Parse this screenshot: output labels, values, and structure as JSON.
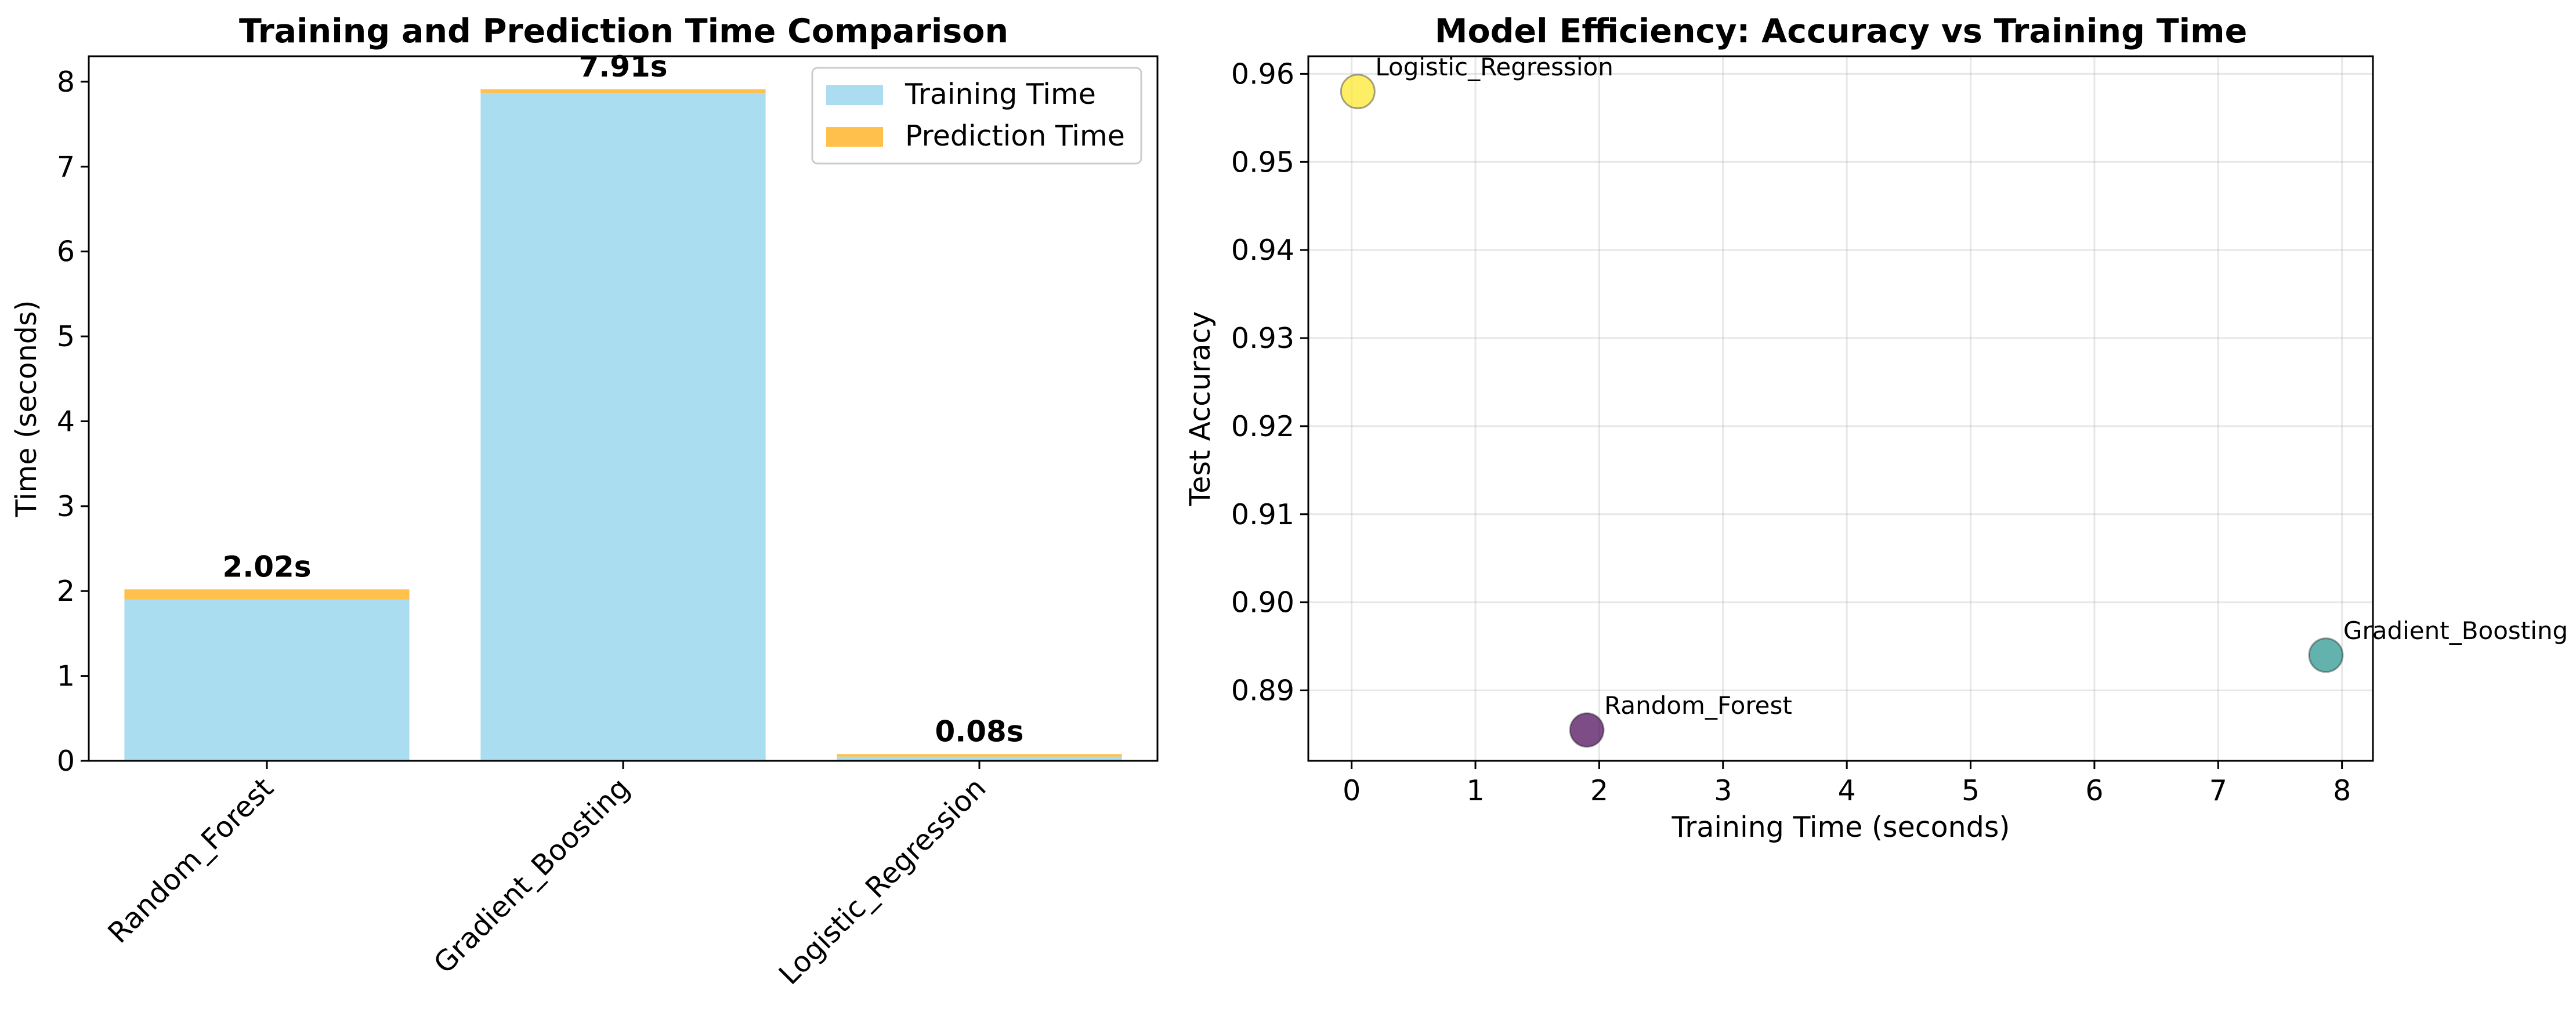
{
  "chart_data": [
    {
      "type": "bar",
      "title": "Training and Prediction Time Comparison",
      "xlabel": "",
      "ylabel": "Time (seconds)",
      "ylim": [
        0,
        8.3
      ],
      "yticks": [
        "0",
        "1",
        "2",
        "3",
        "4",
        "5",
        "6",
        "7",
        "8"
      ],
      "stacked": true,
      "categories": [
        "Random_Forest",
        "Gradient_Boosting",
        "Logistic_Regression"
      ],
      "series": [
        {
          "name": "Training Time",
          "color": "#87ceeb",
          "values": [
            1.9,
            7.87,
            0.05
          ]
        },
        {
          "name": "Prediction Time",
          "color": "#ffa500",
          "values": [
            0.12,
            0.04,
            0.03
          ]
        }
      ],
      "bar_labels": [
        "2.02s",
        "7.91s",
        "0.08s"
      ],
      "legend": "upper right",
      "grid": false
    },
    {
      "type": "scatter",
      "title": "Model Efficiency: Accuracy vs Training Time",
      "xlabel": "Training Time (seconds)",
      "ylabel": "Test Accuracy",
      "xlim": [
        -0.35,
        8.25
      ],
      "ylim": [
        0.882,
        0.962
      ],
      "xticks": [
        "0",
        "1",
        "2",
        "3",
        "4",
        "5",
        "6",
        "7",
        "8"
      ],
      "yticks": [
        "0.89",
        "0.90",
        "0.91",
        "0.92",
        "0.93",
        "0.94",
        "0.95",
        "0.96"
      ],
      "grid": true,
      "points": [
        {
          "label": "Random_Forest",
          "x": 1.9,
          "y": 0.8855,
          "color": "#440154"
        },
        {
          "label": "Gradient_Boosting",
          "x": 7.87,
          "y": 0.894,
          "color": "#21918c"
        },
        {
          "label": "Logistic_Regression",
          "x": 0.05,
          "y": 0.958,
          "color": "#fde725"
        }
      ]
    }
  ]
}
